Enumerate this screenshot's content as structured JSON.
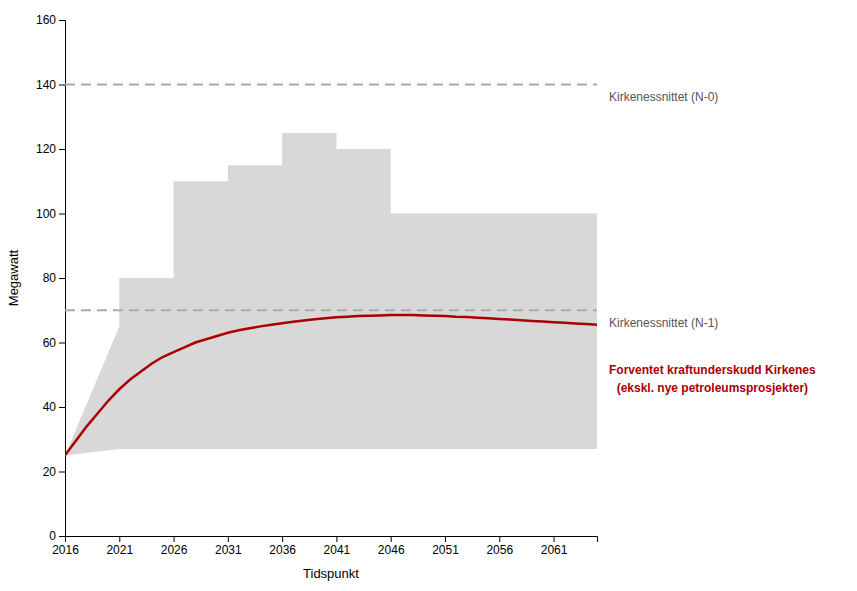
{
  "chart_data": {
    "type": "line",
    "xlabel": "Tidspunkt",
    "ylabel": "Megawatt",
    "xlim": [
      2016,
      2065
    ],
    "ylim": [
      0,
      160
    ],
    "xticks": [
      2016,
      2021,
      2026,
      2031,
      2036,
      2041,
      2046,
      2051,
      2056,
      2061
    ],
    "yticks": [
      0,
      20,
      40,
      60,
      80,
      100,
      120,
      140,
      160
    ],
    "grid": false,
    "series": [
      {
        "type": "area",
        "color": "#d8d8d8",
        "upper_x": [
          2016,
          2021,
          2021,
          2026,
          2026,
          2031,
          2031,
          2036,
          2036,
          2041,
          2041,
          2046,
          2046,
          2051,
          2051,
          2065
        ],
        "upper_y": [
          25,
          65,
          80,
          80,
          110,
          110,
          115,
          115,
          125,
          125,
          120,
          120,
          100,
          100,
          100,
          100
        ],
        "lower_x": [
          2016,
          2021,
          2065
        ],
        "lower_y": [
          25,
          27,
          27
        ]
      },
      {
        "type": "hline",
        "name": "Kirkenessnittet (N-0)",
        "color": "#aaaaaa",
        "line_style": "dashed",
        "value": 140
      },
      {
        "type": "hline",
        "name": "Kirkenessnittet (N-1)",
        "color": "#aaaaaa",
        "line_style": "dashed",
        "value": 70
      },
      {
        "type": "line",
        "color": "#aa0000",
        "name_lines": [
          "Forventet kraftunderskudd Kirkenes",
          "(ekskl. nye petroleumsprosjekter)"
        ],
        "x": [
          2016,
          2017,
          2018,
          2019,
          2020,
          2021,
          2022,
          2023,
          2024,
          2025,
          2026,
          2027,
          2028,
          2029,
          2030,
          2031,
          2032,
          2033,
          2034,
          2035,
          2036,
          2037,
          2038,
          2039,
          2040,
          2041,
          2042,
          2043,
          2044,
          2045,
          2046,
          2047,
          2048,
          2049,
          2050,
          2051,
          2052,
          2053,
          2054,
          2055,
          2056,
          2057,
          2058,
          2059,
          2060,
          2061,
          2062,
          2063,
          2064,
          2065
        ],
        "values": [
          25.0,
          29.5,
          34.0,
          38.0,
          42.0,
          45.5,
          48.5,
          51.0,
          53.5,
          55.5,
          57.0,
          58.5,
          60.0,
          61.0,
          62.0,
          63.0,
          63.8,
          64.4,
          65.0,
          65.5,
          66.0,
          66.4,
          66.8,
          67.2,
          67.5,
          67.8,
          68.0,
          68.2,
          68.3,
          68.4,
          68.5,
          68.5,
          68.5,
          68.4,
          68.3,
          68.2,
          68.0,
          67.9,
          67.7,
          67.5,
          67.3,
          67.1,
          66.9,
          66.7,
          66.5,
          66.3,
          66.1,
          65.9,
          65.7,
          65.5
        ]
      }
    ]
  }
}
